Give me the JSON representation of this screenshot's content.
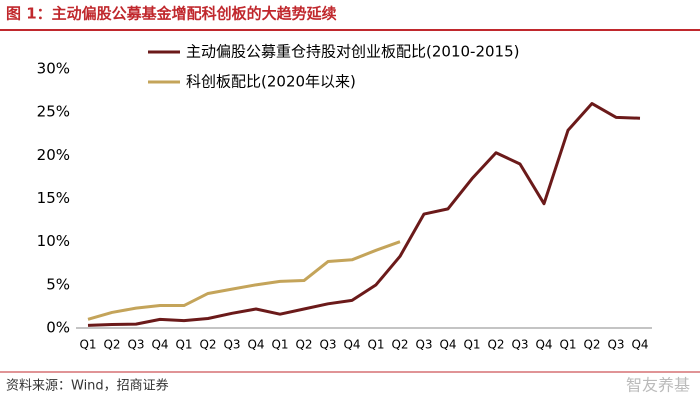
{
  "chart_data": {
    "type": "line",
    "title": "图 1：主动偏股公募基金增配科创板的大趋势延续",
    "source": "资料来源：Wind，招商证券",
    "watermark": "智友养基",
    "categories": [
      "Q1",
      "Q2",
      "Q3",
      "Q4",
      "Q1",
      "Q2",
      "Q3",
      "Q4",
      "Q1",
      "Q2",
      "Q3",
      "Q4",
      "Q1",
      "Q2",
      "Q3",
      "Q4",
      "Q1",
      "Q2",
      "Q3",
      "Q4",
      "Q1",
      "Q2",
      "Q3",
      "Q4"
    ],
    "series": [
      {
        "name": "主动偏股公募重仓持股对创业板配比(2010-2015)",
        "color": "#6b1a1a",
        "values": [
          0.3,
          0.4,
          0.45,
          1.0,
          0.85,
          1.1,
          1.7,
          2.2,
          1.6,
          2.2,
          2.8,
          3.2,
          5.0,
          8.3,
          13.2,
          13.8,
          17.3,
          20.3,
          19.0,
          14.4,
          22.9,
          26.0,
          24.4,
          24.3
        ]
      },
      {
        "name": "科创板配比(2020年以来)",
        "color": "#c4a45a",
        "values": [
          1.0,
          1.8,
          2.3,
          2.6,
          2.6,
          4.0,
          4.5,
          5.0,
          5.4,
          5.5,
          7.7,
          7.9,
          9.0,
          10.0,
          null,
          null,
          null,
          null,
          null,
          null,
          null,
          null,
          null,
          null
        ]
      }
    ],
    "ylim": [
      0,
      30
    ],
    "yticks": [
      {
        "value": 0,
        "label": "0%"
      },
      {
        "value": 5,
        "label": "5%"
      },
      {
        "value": 10,
        "label": "10%"
      },
      {
        "value": 15,
        "label": "15%"
      },
      {
        "value": 20,
        "label": "20%"
      },
      {
        "value": 25,
        "label": "25%"
      },
      {
        "value": 30,
        "label": "30%"
      }
    ],
    "grid": false
  }
}
